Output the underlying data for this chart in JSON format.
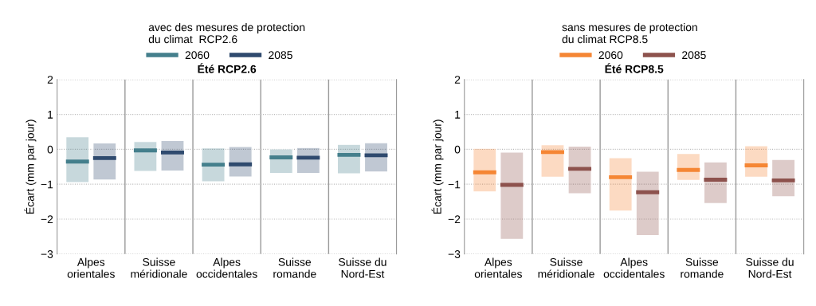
{
  "chart_data": [
    {
      "type": "box",
      "title": "Été RCP2.6",
      "ylabel": "Écart (mm par jour)",
      "legend_title": "avec des mesures de protection\ndu climat  RCP2.6",
      "legend": "top",
      "grid": true,
      "categories": [
        "Alpes\norientales",
        "Suisse\nméridionale",
        "Alpes\noccidentales",
        "Suisse\nromande",
        "Suisse du\nNord-Est"
      ],
      "ylim": [
        -3,
        2
      ],
      "yticks": [
        {
          "value": -3,
          "label": "−3"
        },
        {
          "value": -2,
          "label": "−2"
        },
        {
          "value": -1,
          "label": "−1"
        },
        0,
        1,
        2
      ],
      "series": [
        {
          "name": "2060",
          "color": "#447f8c",
          "boxes": [
            {
              "low": -0.95,
              "q1": -0.95,
              "median": -0.35,
              "q3": 0.36,
              "high": 0.36
            },
            {
              "low": -0.63,
              "q1": -0.63,
              "median": -0.03,
              "q3": 0.22,
              "high": 0.22
            },
            {
              "low": -0.93,
              "q1": -0.93,
              "median": -0.44,
              "q3": 0.04,
              "high": 0.04
            },
            {
              "low": -0.69,
              "q1": -0.69,
              "median": -0.23,
              "q3": 0.01,
              "high": 0.01
            },
            {
              "low": -0.7,
              "q1": -0.7,
              "median": -0.16,
              "q3": 0.14,
              "high": 0.14
            }
          ]
        },
        {
          "name": "2085",
          "color": "#2f4a6e",
          "boxes": [
            {
              "low": -0.88,
              "q1": -0.88,
              "median": -0.25,
              "q3": 0.18,
              "high": 0.18
            },
            {
              "low": -0.62,
              "q1": -0.62,
              "median": -0.09,
              "q3": 0.25,
              "high": 0.25
            },
            {
              "low": -0.79,
              "q1": -0.79,
              "median": -0.43,
              "q3": 0.08,
              "high": 0.08
            },
            {
              "low": -0.69,
              "q1": -0.69,
              "median": -0.24,
              "q3": 0.05,
              "high": 0.05
            },
            {
              "low": -0.65,
              "q1": -0.65,
              "median": -0.17,
              "q3": 0.19,
              "high": 0.19
            }
          ]
        }
      ]
    },
    {
      "type": "box",
      "title": "Été RCP8.5",
      "ylabel": "Écart (mm par jour)",
      "legend_title": "sans mesures de protection\ndu climat RCP8.5",
      "legend": "top",
      "grid": true,
      "categories": [
        "Alpes\norientales",
        "Suisse\nméridionale",
        "Alpes\noccidentales",
        "Suisse\nromande",
        "Suisse du\nNord-Est"
      ],
      "ylim": [
        -3,
        2
      ],
      "yticks": [
        {
          "value": -3,
          "label": "−3"
        },
        {
          "value": -2,
          "label": "−2"
        },
        {
          "value": -1,
          "label": "−1"
        },
        0,
        1,
        2
      ],
      "series": [
        {
          "name": "2060",
          "color": "#f58634",
          "boxes": [
            {
              "low": -1.22,
              "q1": -1.22,
              "median": -0.66,
              "q3": 0.03,
              "high": 0.03
            },
            {
              "low": -0.8,
              "q1": -0.8,
              "median": -0.08,
              "q3": 0.13,
              "high": 0.13
            },
            {
              "low": -1.77,
              "q1": -1.77,
              "median": -0.8,
              "q3": -0.24,
              "high": -0.24
            },
            {
              "low": -0.89,
              "q1": -0.89,
              "median": -0.59,
              "q3": -0.12,
              "high": -0.12
            },
            {
              "low": -0.8,
              "q1": -0.8,
              "median": -0.46,
              "q3": 0.1,
              "high": 0.1
            }
          ]
        },
        {
          "name": "2085",
          "color": "#8d524d",
          "boxes": [
            {
              "low": -2.58,
              "q1": -2.58,
              "median": -1.02,
              "q3": -0.08,
              "high": -0.08
            },
            {
              "low": -1.27,
              "q1": -1.27,
              "median": -0.56,
              "q3": 0.09,
              "high": 0.09
            },
            {
              "low": -2.47,
              "q1": -2.47,
              "median": -1.23,
              "q3": -0.63,
              "high": -0.63
            },
            {
              "low": -1.55,
              "q1": -1.55,
              "median": -0.87,
              "q3": -0.36,
              "high": -0.36
            },
            {
              "low": -1.36,
              "q1": -1.36,
              "median": -0.89,
              "q3": -0.29,
              "high": -0.29
            }
          ]
        }
      ]
    }
  ]
}
